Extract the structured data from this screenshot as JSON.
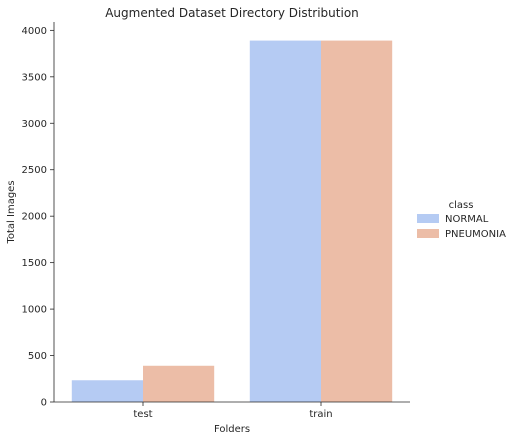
{
  "chart_data": {
    "type": "bar",
    "title": "Augmented Dataset Directory Distribution",
    "xlabel": "Folders",
    "ylabel": "Total Images",
    "categories": [
      "test",
      "train"
    ],
    "series": [
      {
        "name": "NORMAL",
        "values": [
          234,
          3890
        ],
        "color": "#b5cbf3"
      },
      {
        "name": "PNEUMONIA",
        "values": [
          390,
          3890
        ],
        "color": "#ecbda7"
      }
    ],
    "ylim": [
      0,
      4090
    ],
    "yticks": [
      0,
      500,
      1000,
      1500,
      2000,
      2500,
      3000,
      3500,
      4000
    ],
    "grid": false,
    "legend": {
      "title": "class",
      "position": "right"
    }
  }
}
